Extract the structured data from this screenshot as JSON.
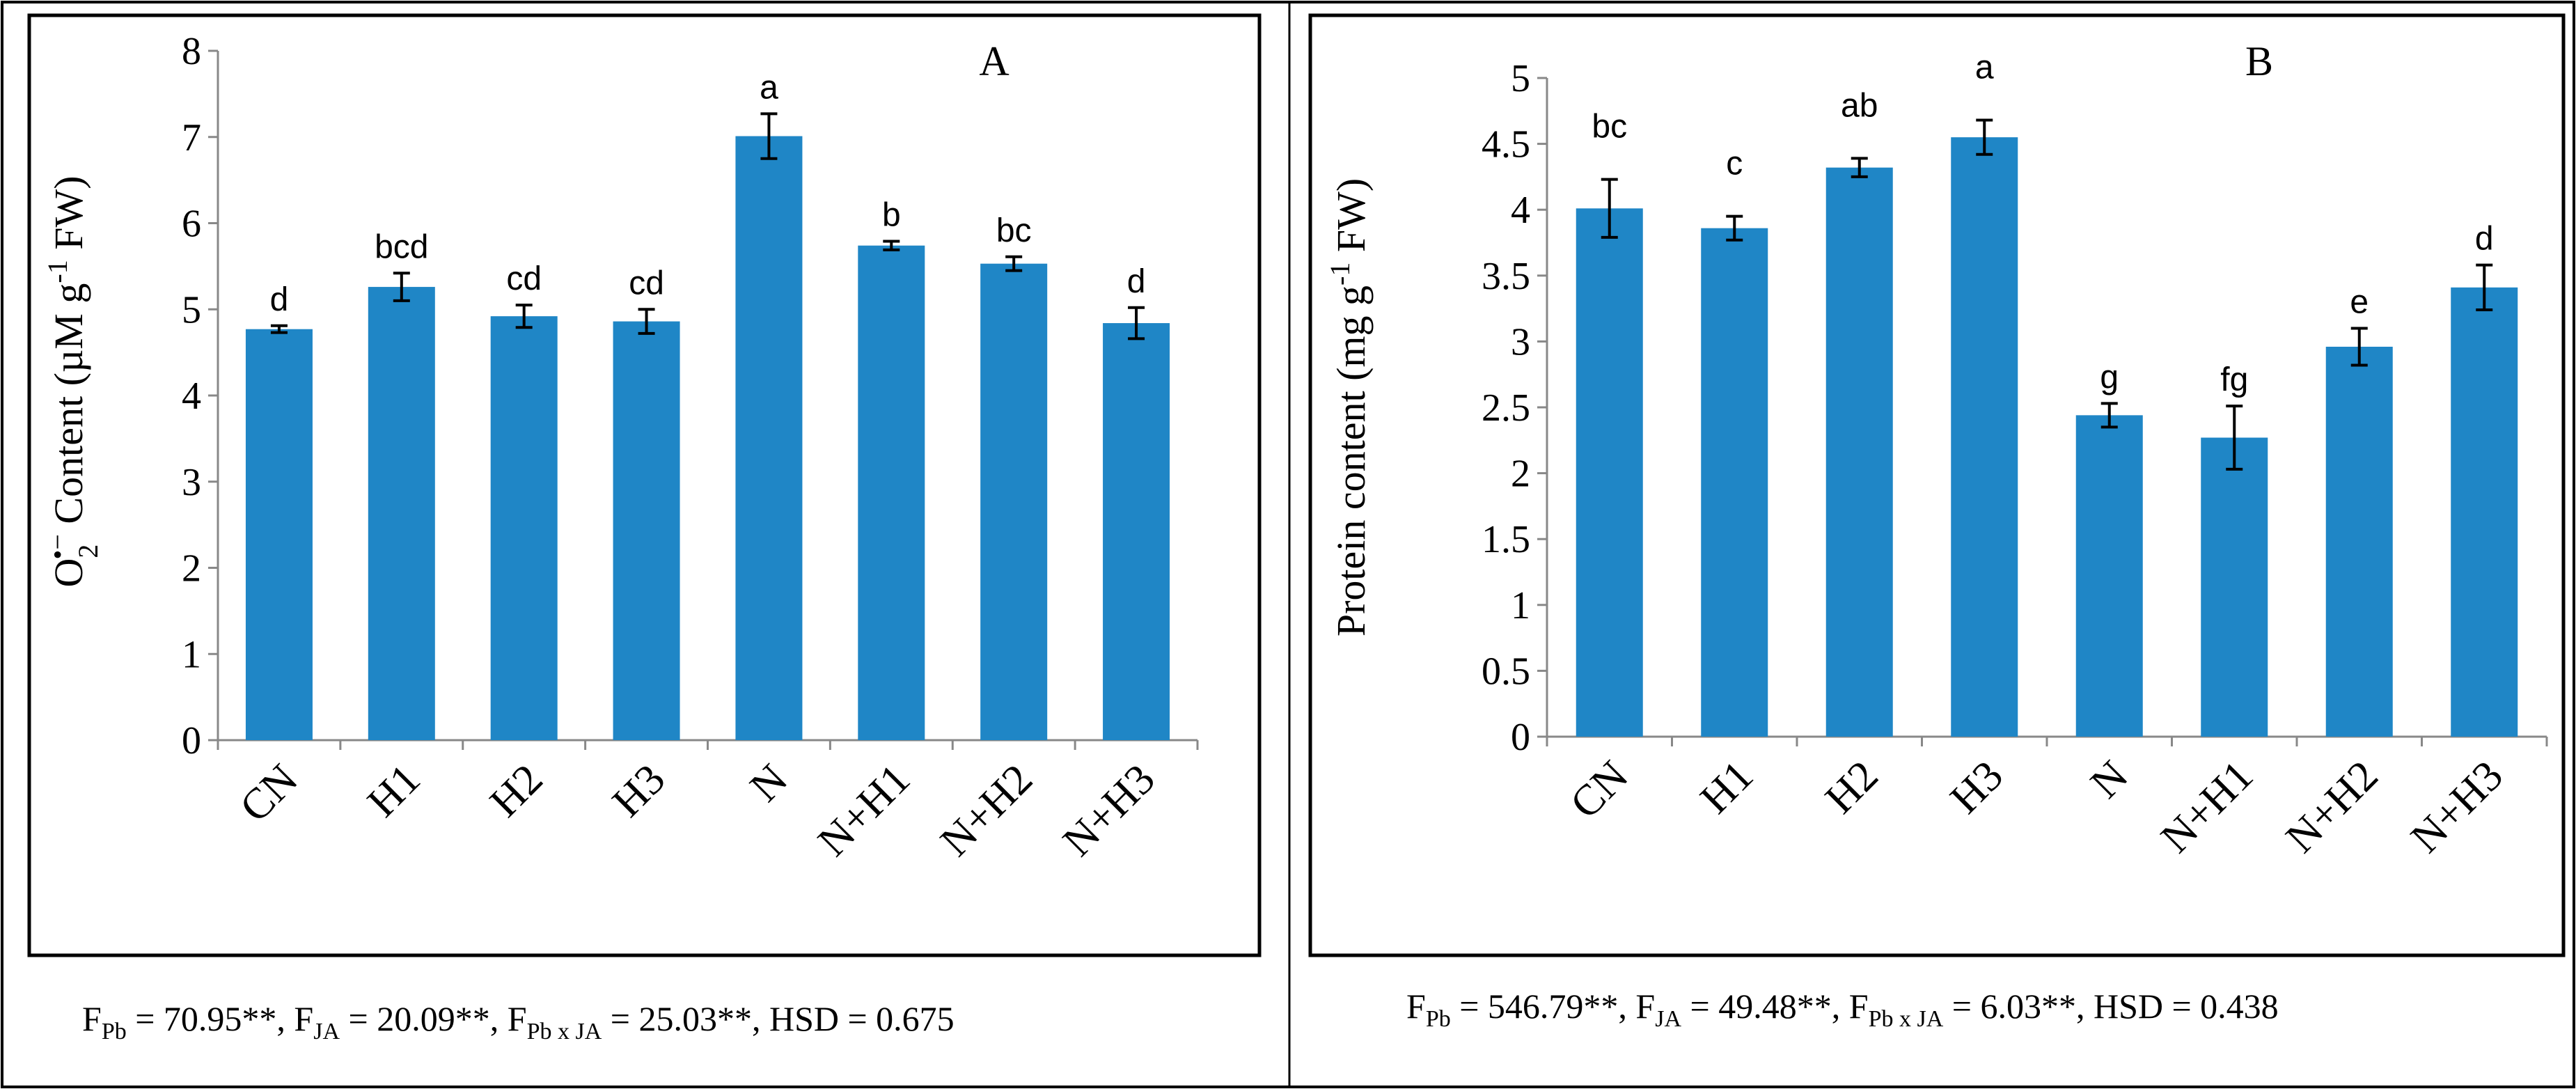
{
  "chart_data": [
    {
      "type": "bar",
      "panel_label": "A",
      "categories": [
        "CN",
        "H1",
        "H2",
        "H3",
        "N",
        "N+H1",
        "N+H2",
        "N+H3"
      ],
      "values": [
        4.77,
        5.26,
        4.92,
        4.86,
        7.01,
        5.74,
        5.53,
        4.84
      ],
      "errors": [
        0.04,
        0.16,
        0.13,
        0.14,
        0.26,
        0.05,
        0.08,
        0.18
      ],
      "letters": [
        "d",
        "bcd",
        "cd",
        "cd",
        "a",
        "b",
        "bc",
        "d"
      ],
      "ylabel": {
        "pre": "O",
        "sub": "2",
        "sup": "•−",
        "mid": " Content (µM g",
        "sup2": "-1",
        "post": " FW)"
      },
      "ylim": [
        0,
        8
      ],
      "yticks": [
        "0",
        "1",
        "2",
        "3",
        "4",
        "5",
        "6",
        "7",
        "8"
      ],
      "footnote": [
        {
          "t": "F",
          "s": "n"
        },
        {
          "t": "Pb",
          "s": "sub"
        },
        {
          "t": " = 70.95**, F",
          "s": "n"
        },
        {
          "t": "JA",
          "s": "sub"
        },
        {
          "t": " = 20.09**, F",
          "s": "n"
        },
        {
          "t": "Pb x JA",
          "s": "sub"
        },
        {
          "t": " = 25.03**, HSD = 0.675",
          "s": "n"
        }
      ]
    },
    {
      "type": "bar",
      "panel_label": "B",
      "categories": [
        "CN",
        "H1",
        "H2",
        "H3",
        "N",
        "N+H1",
        "N+H2",
        "N+H3"
      ],
      "values": [
        4.01,
        3.86,
        4.32,
        4.55,
        2.44,
        2.27,
        2.96,
        3.41
      ],
      "errors": [
        0.22,
        0.09,
        0.07,
        0.13,
        0.09,
        0.24,
        0.14,
        0.17
      ],
      "letters": [
        "bc",
        "c",
        "ab",
        "a",
        "g",
        "fg",
        "e",
        "d"
      ],
      "ylabel": {
        "pre": "Protein content (mg g",
        "sup": "-1",
        "post": " FW)"
      },
      "ylim": [
        0,
        5
      ],
      "yticks": [
        "0",
        "0.5",
        "1",
        "1.5",
        "2",
        "2.5",
        "3",
        "3.5",
        "4",
        "4.5",
        "5"
      ],
      "footnote": [
        {
          "t": "F",
          "s": "n"
        },
        {
          "t": "Pb",
          "s": "sub"
        },
        {
          "t": " = 546.79**, F",
          "s": "n"
        },
        {
          "t": "JA",
          "s": "sub"
        },
        {
          "t": " = 49.48**, F",
          "s": "n"
        },
        {
          "t": "Pb x JA",
          "s": "sub"
        },
        {
          "t": " = 6.03**, HSD = 0.438",
          "s": "n"
        }
      ]
    }
  ],
  "colors": {
    "bar": "#1f86c6",
    "axis": "#888888",
    "frame": "#000000",
    "text": "#000000"
  }
}
